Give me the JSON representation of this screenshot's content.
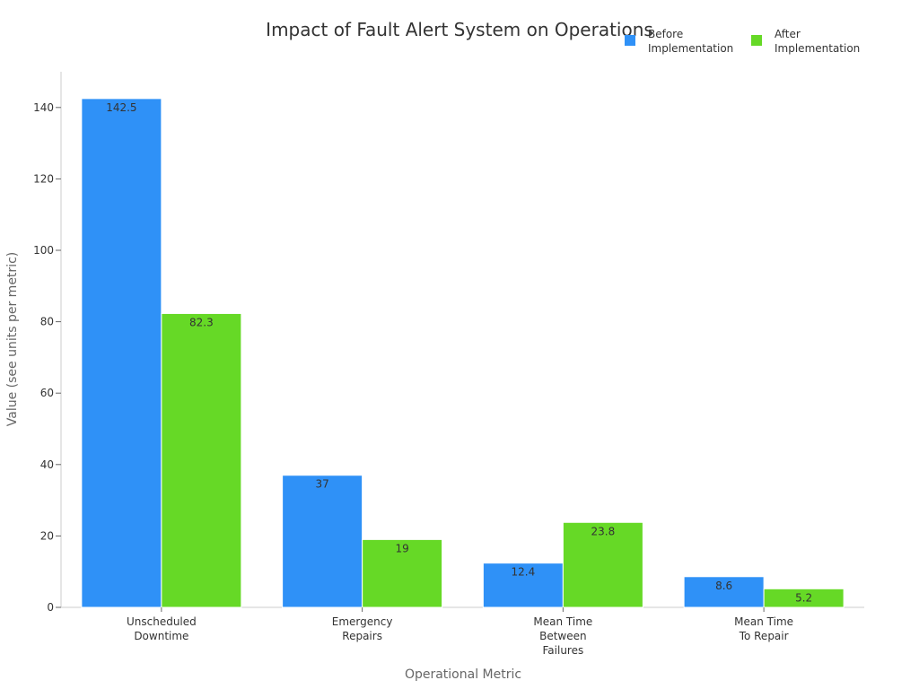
{
  "chart_data": {
    "type": "bar",
    "title": "Impact of Fault Alert System on Operations",
    "xlabel": "Operational Metric",
    "ylabel": "Value (see units per metric)",
    "categories": [
      [
        "Unscheduled",
        "Downtime"
      ],
      [
        "Emergency",
        "Repairs"
      ],
      [
        "Mean Time",
        "Between",
        "Failures"
      ],
      [
        "Mean Time",
        "To Repair"
      ]
    ],
    "series": [
      {
        "name_lines": [
          "Before",
          "Implementation"
        ],
        "color": "#2f91f7",
        "values": [
          142.5,
          37,
          12.4,
          8.6
        ],
        "labels": [
          "142.5",
          "37",
          "12.4",
          "8.6"
        ]
      },
      {
        "name_lines": [
          "After",
          "Implementation"
        ],
        "color": "#66d926",
        "values": [
          82.3,
          19,
          23.8,
          5.2
        ],
        "labels": [
          "82.3",
          "19",
          "23.8",
          "5.2"
        ]
      }
    ],
    "ylim": [
      0,
      150
    ],
    "yticks": [
      0,
      20,
      40,
      60,
      80,
      100,
      120,
      140
    ],
    "ytick_labels": [
      "0",
      "20",
      "40",
      "60",
      "80",
      "100",
      "120",
      "140"
    ],
    "grid": false,
    "legend_position": "top-right"
  }
}
